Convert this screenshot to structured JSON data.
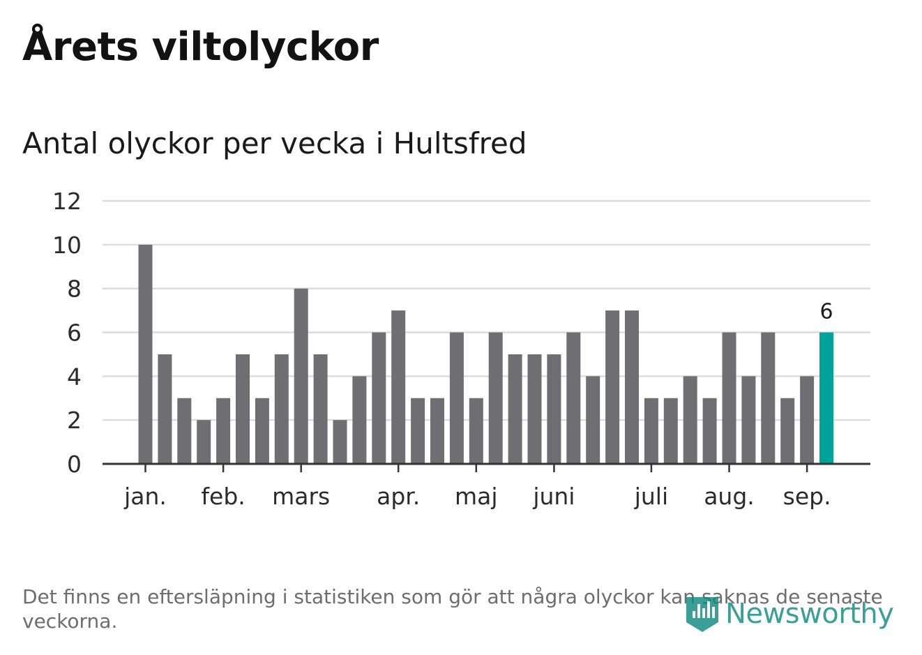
{
  "title": "Årets viltolyckor",
  "subtitle": "Antal olyckor per vecka i Hultsfred",
  "footnote": "Det finns en eftersläpning i statistiken som gör att några olyckor kan saknas de senaste veckorna.",
  "logo": {
    "text": "Newsworthy",
    "icon": "newsworthy-logo-icon",
    "color": "#0f8a80"
  },
  "colors": {
    "bar": "#6f6e73",
    "highlight": "#00a39a",
    "grid": "#dcdcdc",
    "axis": "#333333"
  },
  "chart_data": {
    "type": "bar",
    "ylim": [
      0,
      12
    ],
    "yticks": [
      "0",
      "2",
      "4",
      "6",
      "8",
      "10",
      "12"
    ],
    "grid": true,
    "values": [
      10,
      5,
      3,
      2,
      3,
      5,
      3,
      5,
      8,
      5,
      2,
      4,
      6,
      7,
      3,
      3,
      6,
      3,
      6,
      5,
      5,
      5,
      6,
      4,
      7,
      7,
      3,
      3,
      4,
      3,
      6,
      4,
      6,
      3,
      4,
      6
    ],
    "highlight_index": 35,
    "highlight_label": "6",
    "month_labels": [
      {
        "label": "jan.",
        "index": 0
      },
      {
        "label": "feb.",
        "index": 4
      },
      {
        "label": "mars",
        "index": 8
      },
      {
        "label": "apr.",
        "index": 13
      },
      {
        "label": "maj",
        "index": 17
      },
      {
        "label": "juni",
        "index": 21
      },
      {
        "label": "juli",
        "index": 26
      },
      {
        "label": "aug.",
        "index": 30
      },
      {
        "label": "sep.",
        "index": 34
      }
    ]
  }
}
